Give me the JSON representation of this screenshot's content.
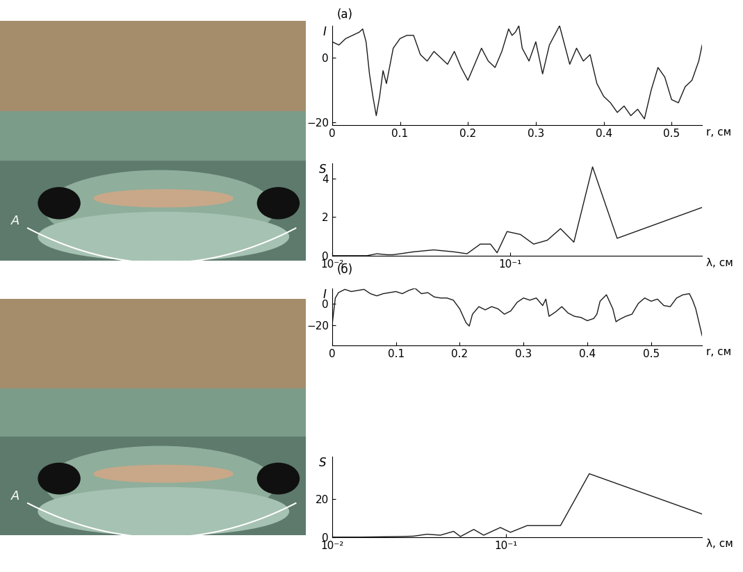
{
  "panel_labels": [
    "(а)",
    "(б)"
  ],
  "photos": [
    {
      "label": "A"
    },
    {
      "label": "A"
    }
  ],
  "chart_data": [
    {
      "type": "line",
      "y_label": "I",
      "x_label": "r, см",
      "color": "#1a1a1a",
      "x": [
        0,
        0.01,
        0.02,
        0.03,
        0.04,
        0.045,
        0.05,
        0.055,
        0.06,
        0.065,
        0.07,
        0.075,
        0.08,
        0.09,
        0.1,
        0.11,
        0.12,
        0.13,
        0.14,
        0.15,
        0.16,
        0.17,
        0.18,
        0.19,
        0.2,
        0.21,
        0.22,
        0.23,
        0.24,
        0.25,
        0.26,
        0.265,
        0.27,
        0.275,
        0.28,
        0.29,
        0.3,
        0.31,
        0.32,
        0.33,
        0.335,
        0.34,
        0.35,
        0.36,
        0.37,
        0.38,
        0.39,
        0.4,
        0.41,
        0.42,
        0.43,
        0.44,
        0.45,
        0.46,
        0.47,
        0.48,
        0.49,
        0.5,
        0.51,
        0.52,
        0.53,
        0.54,
        0.545
      ],
      "values": [
        5,
        4,
        6,
        7,
        8,
        9,
        5,
        -5,
        -12,
        -18,
        -12,
        -4,
        -8,
        3,
        6,
        7,
        7,
        1,
        -1,
        2,
        0,
        -2,
        2,
        -3,
        -7,
        -2,
        3,
        -1,
        -3,
        2,
        9,
        7,
        8,
        10,
        3,
        -1,
        5,
        -5,
        4,
        8,
        10,
        6,
        -2,
        3,
        -1,
        1,
        -8,
        -12,
        -14,
        -17,
        -15,
        -18,
        -16,
        -19,
        -10,
        -3,
        -6,
        -13,
        -14,
        -9,
        -7,
        -1,
        4
      ],
      "xlim": [
        0,
        0.545
      ],
      "ylim": [
        -21,
        10
      ],
      "xticks": [
        0,
        0.1,
        0.2,
        0.3,
        0.4,
        0.5
      ],
      "yticks": [
        {
          "value": -20,
          "label": "−20"
        },
        0
      ]
    },
    {
      "type": "line",
      "y_label": "S",
      "x_label": "λ, см",
      "color": "#1a1a1a",
      "log": "x",
      "x": [
        0.01,
        0.0121,
        0.0157,
        0.0178,
        0.0203,
        0.022,
        0.0241,
        0.0286,
        0.0371,
        0.0481,
        0.0571,
        0.0678,
        0.0773,
        0.0842,
        0.0958,
        0.1138,
        0.135,
        0.161,
        0.191,
        0.227,
        0.289,
        0.397,
        1.19
      ],
      "values": [
        0,
        0,
        0,
        0.1,
        0.05,
        0.05,
        0.1,
        0.2,
        0.3,
        0.2,
        0.1,
        0.6,
        0.6,
        0.15,
        1.25,
        1.1,
        0.6,
        0.8,
        1.4,
        0.7,
        4.6,
        0.9,
        2.5
      ],
      "xlim": [
        0.01,
        1.19
      ],
      "ylim": [
        0,
        4.8
      ],
      "xticks": [
        {
          "value": 0.01,
          "label": "10⁻²"
        },
        {
          "value": 0.1,
          "label": "10⁻¹"
        }
      ],
      "yticks": [
        0,
        2,
        4
      ]
    },
    {
      "type": "line",
      "y_label": "I",
      "x_label": "r, см",
      "color": "#1a1a1a",
      "x": [
        0,
        0.005,
        0.01,
        0.02,
        0.03,
        0.04,
        0.05,
        0.06,
        0.07,
        0.08,
        0.09,
        0.1,
        0.11,
        0.12,
        0.13,
        0.14,
        0.15,
        0.16,
        0.17,
        0.18,
        0.19,
        0.2,
        0.21,
        0.215,
        0.22,
        0.23,
        0.24,
        0.25,
        0.26,
        0.27,
        0.28,
        0.29,
        0.3,
        0.31,
        0.32,
        0.33,
        0.335,
        0.34,
        0.35,
        0.36,
        0.37,
        0.38,
        0.39,
        0.4,
        0.41,
        0.415,
        0.42,
        0.43,
        0.44,
        0.445,
        0.45,
        0.46,
        0.47,
        0.48,
        0.49,
        0.5,
        0.51,
        0.52,
        0.53,
        0.54,
        0.55,
        0.56,
        0.565,
        0.57,
        0.58
      ],
      "values": [
        -20,
        5,
        10,
        13,
        11,
        12,
        13,
        9,
        7,
        9,
        10,
        11,
        9,
        12,
        14,
        9,
        10,
        6,
        5,
        5,
        3,
        -5,
        -18,
        -21,
        -10,
        -3,
        -6,
        -3,
        -5,
        -10,
        -7,
        1,
        5,
        3,
        5,
        -2,
        4,
        -12,
        -8,
        -3,
        -9,
        -12,
        -13,
        -16,
        -14,
        -10,
        2,
        8,
        -5,
        -17,
        -15,
        -12,
        -10,
        0,
        5,
        2,
        4,
        -2,
        -3,
        5,
        8,
        9,
        3,
        -5,
        -30
      ],
      "xlim": [
        0,
        0.58
      ],
      "ylim": [
        -39,
        14
      ],
      "xticks": [
        0,
        0.1,
        0.2,
        0.3,
        0.4,
        0.5
      ],
      "yticks": [
        {
          "value": -20,
          "label": "−20"
        },
        0
      ]
    },
    {
      "type": "line",
      "y_label": "S",
      "x_label": "λ, см",
      "color": "#1a1a1a",
      "log": "x",
      "x": [
        0.01,
        0.0145,
        0.0207,
        0.0247,
        0.0294,
        0.0352,
        0.042,
        0.0501,
        0.0548,
        0.0654,
        0.0746,
        0.0931,
        0.1064,
        0.1328,
        0.173,
        0.2066,
        0.3027,
        1.352
      ],
      "values": [
        0,
        0,
        0.2,
        0.3,
        0.5,
        1.5,
        1,
        3,
        0.3,
        4,
        1,
        5,
        2.5,
        6,
        6,
        6,
        33,
        12
      ],
      "xlim": [
        0.01,
        1.352
      ],
      "ylim": [
        0,
        42
      ],
      "xticks": [
        {
          "value": 0.01,
          "label": "10⁻²"
        },
        {
          "value": 0.1,
          "label": "10⁻¹"
        }
      ],
      "yticks": [
        0,
        20
      ]
    }
  ]
}
